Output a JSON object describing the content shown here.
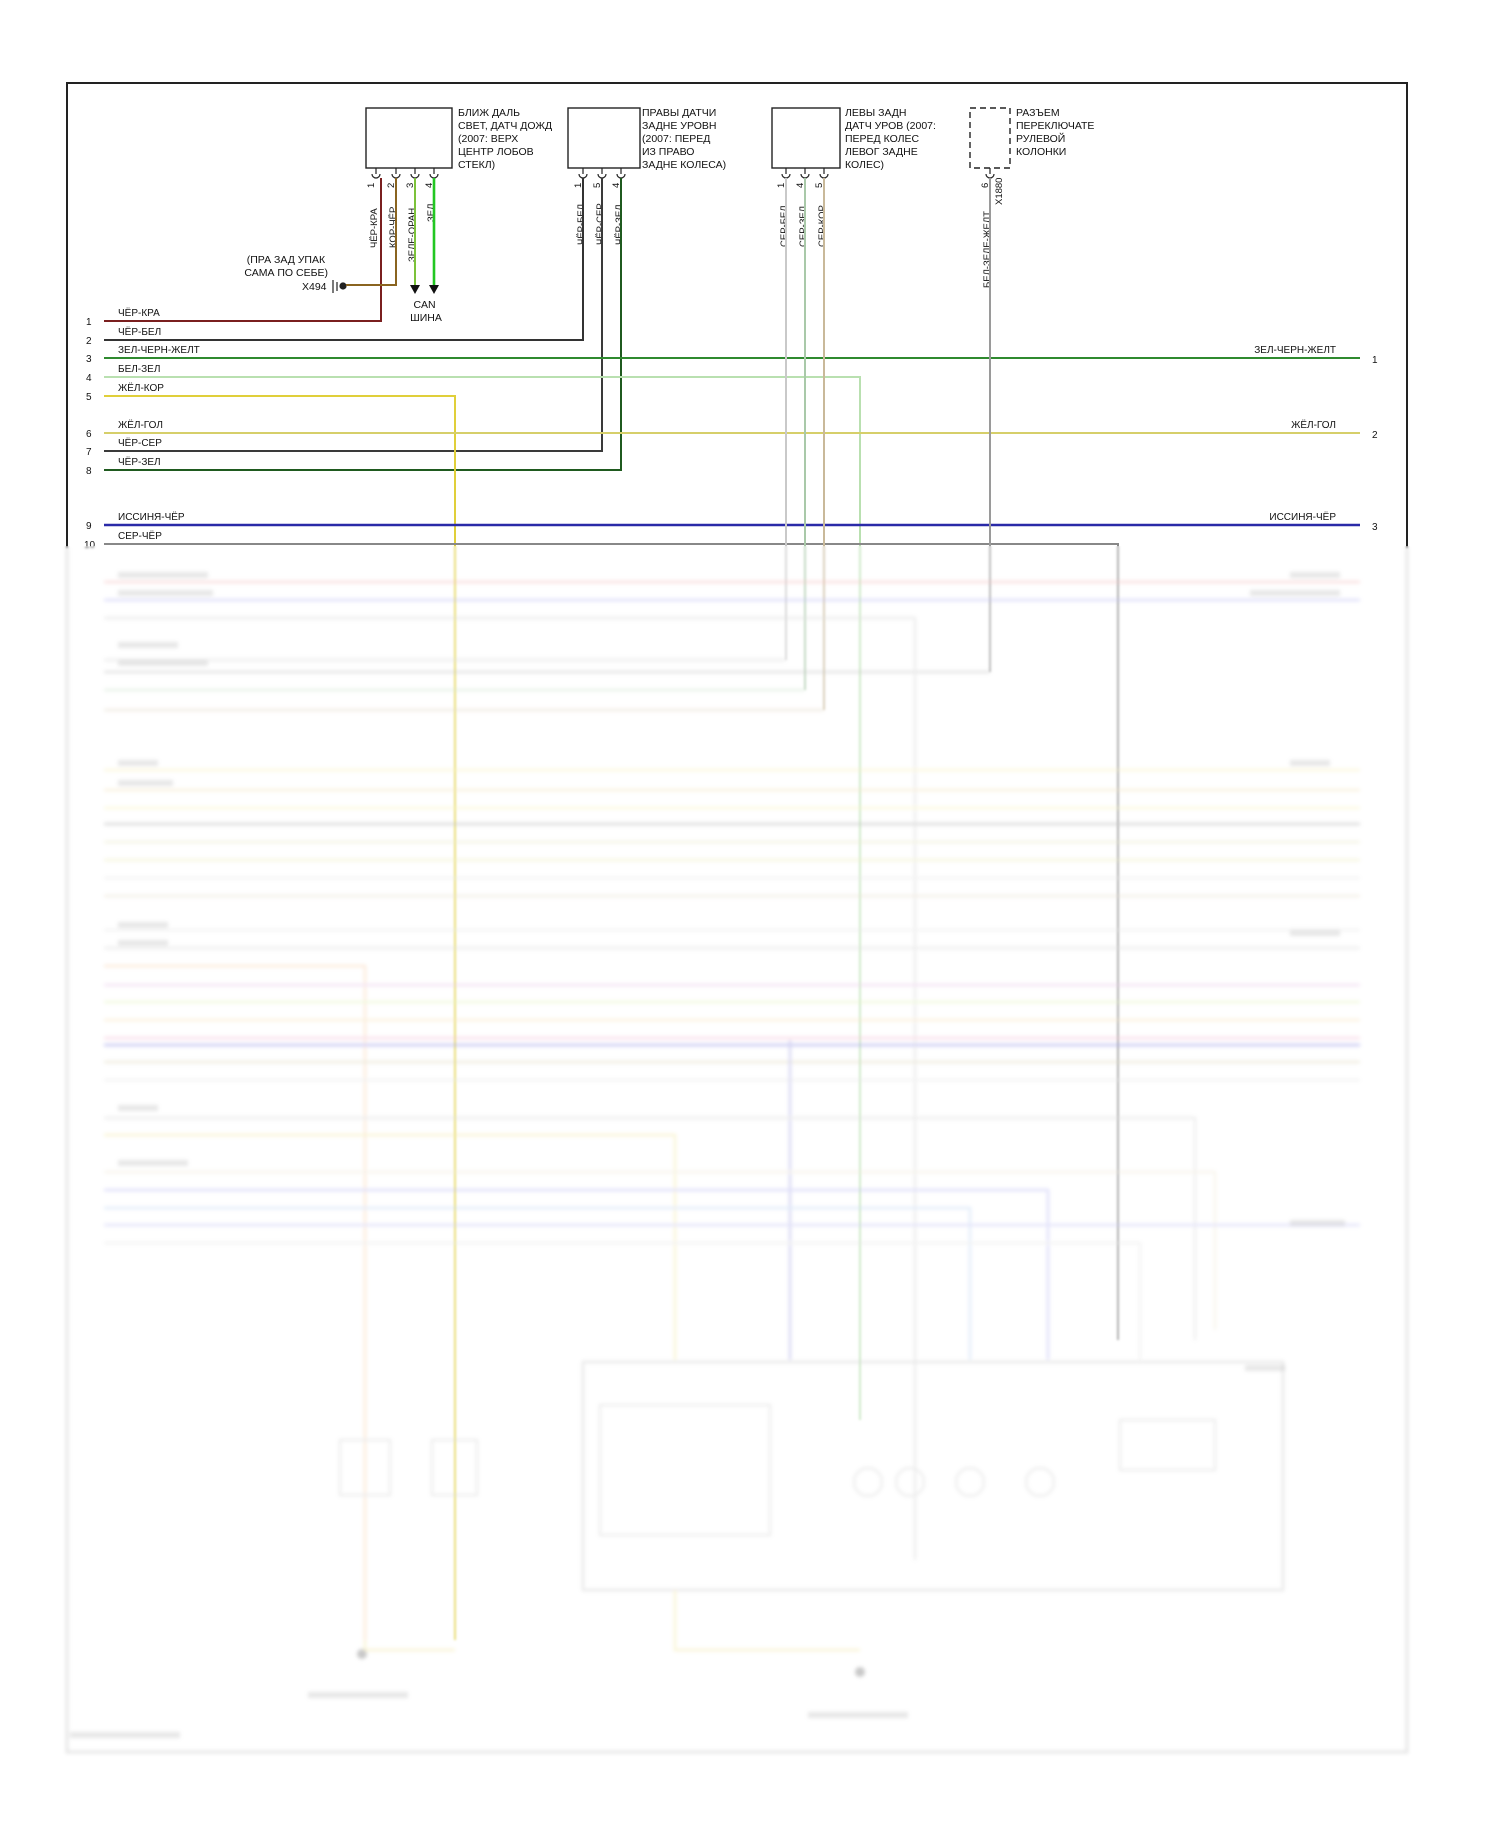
{
  "components": [
    {
      "id": "c1",
      "text": [
        "БЛИЖ ДАЛЬ",
        "СВЕТ, ДАТЧ ДОЖД",
        "(2007: ВЕРХ",
        "ЦЕНТР ЛОБОВ",
        "СТЕКЛ)"
      ]
    },
    {
      "id": "c2",
      "text": [
        "ПРАВЫ ДАТЧИ",
        "ЗАДНЕ УРОВН",
        "(2007: ПЕРЕД",
        "ИЗ ПРАВО",
        "ЗАДНЕ КОЛЕСА)"
      ]
    },
    {
      "id": "c3",
      "text": [
        "ЛЕВЫ ЗАДН",
        "ДАТЧ УРОВ (2007:",
        "ПЕРЕД КОЛЕС",
        "ЛЕВОГ ЗАДНЕ",
        "КОЛЕС)"
      ]
    },
    {
      "id": "c4",
      "text": [
        "РАЗЪЕМ",
        "ПЕРЕКЛЮЧАТЕ",
        "РУЛЕВОЙ",
        "КОЛОНКИ"
      ]
    }
  ],
  "c1_pins": [
    "1",
    "2",
    "3",
    "4"
  ],
  "c1_wires": [
    "ЧЁР-КРА",
    "КОР-ЧЁР",
    "ЗЕЛЕ-ОРАН",
    "ЗЕЛ"
  ],
  "c2_pins": [
    "1",
    "5",
    "4"
  ],
  "c2_wires": [
    "ЧЁР-БЕЛ",
    "ЧЁР-СЕР",
    "ЧЁР-ЗЕЛ"
  ],
  "c3_pins": [
    "1",
    "4",
    "5"
  ],
  "c3_wires": [
    "СЕР-БЕЛ",
    "СЕР-ЗЕЛ",
    "СЕР-КОР"
  ],
  "c4_pin": "6",
  "c4_wire": "БЕЛ-ЗЕЛЕ-ЖЕЛТ",
  "c4_connector": "X1880",
  "ground": {
    "text": [
      "(ПРА ЗАД УПАК",
      "САМА ПО СЕБЕ)"
    ],
    "connector": "X494"
  },
  "can_bus": [
    "CAN",
    "ШИНА"
  ],
  "left_wires": [
    {
      "pin": "1",
      "label": "ЧЁР-КРА"
    },
    {
      "pin": "2",
      "label": "ЧЁР-БЕЛ"
    },
    {
      "pin": "3",
      "label": "ЗЕЛ-ЧЕРН-ЖЕЛТ"
    },
    {
      "pin": "4",
      "label": "БЕЛ-ЗЕЛ"
    },
    {
      "pin": "5",
      "label": "ЖЁЛ-КОР"
    },
    {
      "pin": "6",
      "label": "ЖЁЛ-ГОЛ"
    },
    {
      "pin": "7",
      "label": "ЧЁР-СЕР"
    },
    {
      "pin": "8",
      "label": "ЧЁР-ЗЕЛ"
    },
    {
      "pin": "9",
      "label": "ИССИНЯ-ЧЁР"
    },
    {
      "pin": "10",
      "label": "СЕР-ЧЁР"
    }
  ],
  "right_wires": [
    {
      "pin": "1",
      "label": "ЗЕЛ-ЧЕРН-ЖЕЛТ"
    },
    {
      "pin": "2",
      "label": "ЖЁЛ-ГОЛ"
    },
    {
      "pin": "3",
      "label": "ИССИНЯ-ЧЁР"
    }
  ],
  "colors": {
    "frame": "#222222",
    "black_red": "#7a1f1f",
    "black_white": "#333333",
    "green_black_yellow": "#2f8a2f",
    "white_green": "#b9e0b0",
    "yellow_brown": "#e0cf3a",
    "yellow_blue": "#d6cf6a",
    "black_grey": "#3a3a3a",
    "black_green": "#1f5a1f",
    "blue_black": "#2a2aa8",
    "grey_black": "#888888",
    "green": "#22c722",
    "green_orange": "#7cc23a",
    "brown_black": "#8a6420",
    "grey_white": "#c9c9c9",
    "grey_green": "#a9c9a9",
    "grey_brown": "#c9b99a"
  }
}
